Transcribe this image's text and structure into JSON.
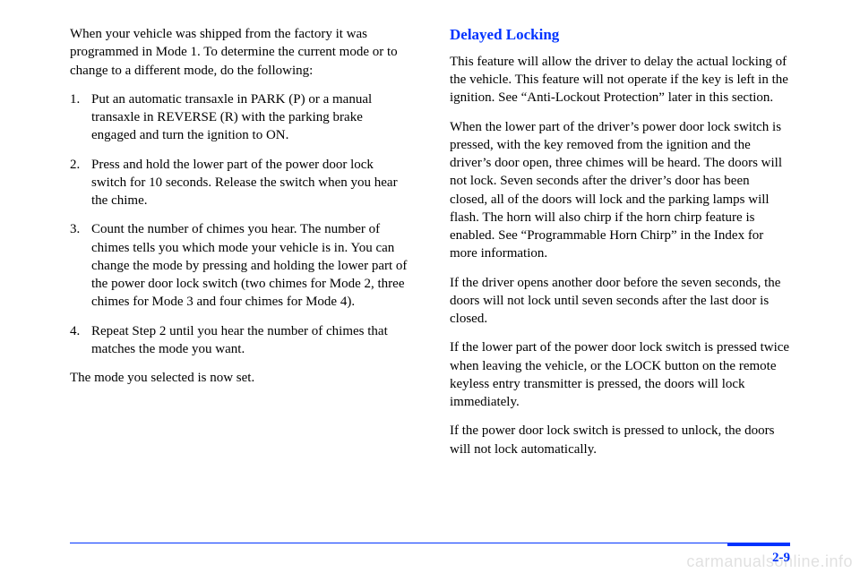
{
  "leftColumn": {
    "intro": "When your vehicle was shipped from the factory it was programmed in Mode 1. To determine the current mode or to change to a different mode, do the following:",
    "steps": [
      {
        "num": "1.",
        "text": "Put an automatic transaxle in PARK (P) or a manual transaxle in REVERSE (R) with the parking brake engaged and turn the ignition to ON."
      },
      {
        "num": "2.",
        "text": "Press and hold the lower part of the power door lock switch for 10 seconds. Release the switch when you hear the chime."
      },
      {
        "num": "3.",
        "text": "Count the number of chimes you hear. The number of chimes tells you which mode your vehicle is in. You can change the mode by pressing and holding the lower part of the power door lock switch (two chimes for Mode 2, three chimes for Mode 3 and four chimes for Mode 4)."
      },
      {
        "num": "4.",
        "text": "Repeat Step 2 until you hear the number of chimes that matches the mode you want."
      }
    ],
    "outro": "The mode you selected is now set."
  },
  "rightColumn": {
    "heading": "Delayed Locking",
    "paragraphs": [
      "This feature will allow the driver to delay the actual locking of the vehicle. This feature will not operate if the key is left in the ignition. See “Anti-Lockout Protection” later in this section.",
      "When the lower part of the driver’s power door lock switch is pressed, with the key removed from the ignition and the driver’s door open, three chimes will be heard. The doors will not lock. Seven seconds after the driver’s door has been closed, all of the doors will lock and the parking lamps will flash. The horn will also chirp if the horn chirp feature is enabled. See “Programmable Horn Chirp” in the Index for more information.",
      "If the driver opens another door before the seven seconds, the doors will not lock until seven seconds after the last door is closed.",
      "If the lower part of the power door lock switch is pressed twice when leaving the vehicle, or the LOCK button on the remote keyless entry transmitter is pressed, the doors will lock immediately.",
      "If the power door lock switch is pressed to unlock, the doors will not lock automatically."
    ]
  },
  "pageNumber": "2-9",
  "watermark": "carmanualsonline.info",
  "colors": {
    "link": "#0033ff",
    "text": "#000000",
    "background": "#ffffff"
  }
}
